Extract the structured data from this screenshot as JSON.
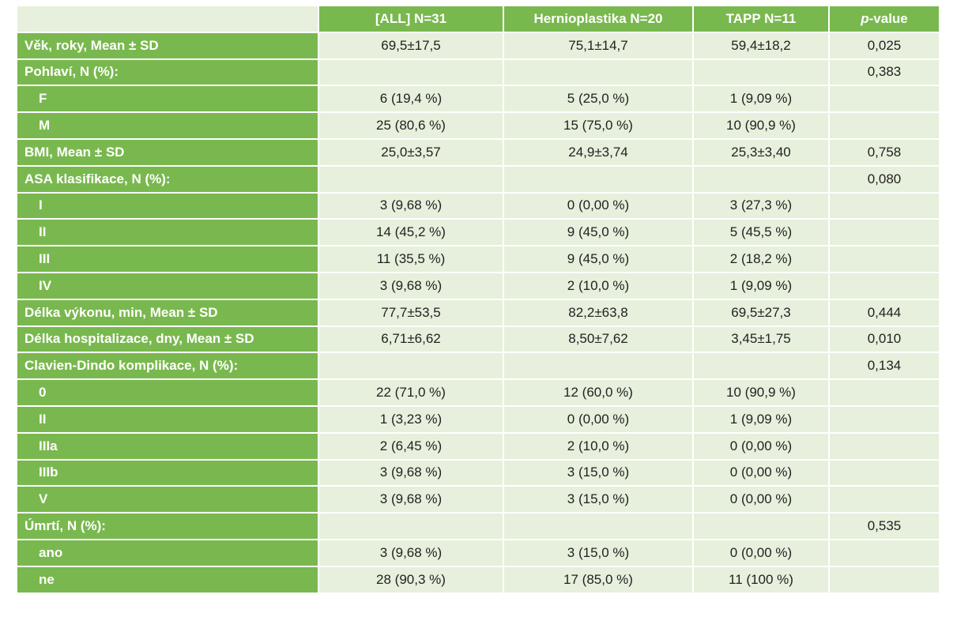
{
  "table": {
    "columns": [
      "[ALL]  N=31",
      "Hernioplastika  N=20",
      "TAPP  N=11"
    ],
    "pvalue_header": {
      "italic": "p",
      "rest": "-value"
    },
    "rows": [
      {
        "label": "Věk, roky, Mean ± SD",
        "sub": false,
        "values": [
          "69,5±17,5",
          "75,1±14,7",
          "59,4±18,2",
          "0,025"
        ]
      },
      {
        "label": "Pohlaví, N (%):",
        "sub": false,
        "values": [
          "",
          "",
          "",
          "0,383"
        ]
      },
      {
        "label": "F",
        "sub": true,
        "values": [
          "6 (19,4 %)",
          "5 (25,0 %)",
          "1 (9,09 %)",
          ""
        ]
      },
      {
        "label": "M",
        "sub": true,
        "values": [
          "25 (80,6 %)",
          "15 (75,0 %)",
          "10 (90,9 %)",
          ""
        ]
      },
      {
        "label": "BMI, Mean ± SD",
        "sub": false,
        "values": [
          "25,0±3,57",
          "24,9±3,74",
          "25,3±3,40",
          "0,758"
        ]
      },
      {
        "label": "ASA klasifikace, N (%):",
        "sub": false,
        "values": [
          "",
          "",
          "",
          "0,080"
        ]
      },
      {
        "label": "I",
        "sub": true,
        "values": [
          "3 (9,68 %)",
          "0 (0,00 %)",
          "3 (27,3 %)",
          ""
        ]
      },
      {
        "label": "II",
        "sub": true,
        "values": [
          "14 (45,2 %)",
          "9 (45,0 %)",
          "5 (45,5 %)",
          ""
        ]
      },
      {
        "label": "III",
        "sub": true,
        "values": [
          "11 (35,5 %)",
          "9 (45,0 %)",
          "2 (18,2 %)",
          ""
        ]
      },
      {
        "label": "IV",
        "sub": true,
        "values": [
          "3 (9,68 %)",
          "2 (10,0 %)",
          "1 (9,09 %)",
          ""
        ]
      },
      {
        "label": "Délka výkonu, min, Mean ± SD",
        "sub": false,
        "values": [
          "77,7±53,5",
          "82,2±63,8",
          "69,5±27,3",
          "0,444"
        ]
      },
      {
        "label": "Délka hospitalizace, dny, Mean ± SD",
        "sub": false,
        "values": [
          "6,71±6,62",
          "8,50±7,62",
          "3,45±1,75",
          "0,010"
        ]
      },
      {
        "label": "Clavien-Dindo komplikace, N (%):",
        "sub": false,
        "values": [
          "",
          "",
          "",
          "0,134"
        ]
      },
      {
        "label": "0",
        "sub": true,
        "values": [
          "22 (71,0 %)",
          "12 (60,0 %)",
          "10 (90,9 %)",
          ""
        ]
      },
      {
        "label": "II",
        "sub": true,
        "values": [
          "1 (3,23 %)",
          "0 (0,00 %)",
          "1 (9,09 %)",
          ""
        ]
      },
      {
        "label": "IIIa",
        "sub": true,
        "values": [
          "2 (6,45 %)",
          "2 (10,0 %)",
          "0 (0,00 %)",
          ""
        ]
      },
      {
        "label": "IIIb",
        "sub": true,
        "values": [
          "3 (9,68 %)",
          "3 (15,0 %)",
          "0 (0,00 %)",
          ""
        ]
      },
      {
        "label": "V",
        "sub": true,
        "values": [
          "3 (9,68 %)",
          "3 (15,0 %)",
          "0 (0,00 %)",
          ""
        ]
      },
      {
        "label": "Úmrtí, N (%):",
        "sub": false,
        "values": [
          "",
          "",
          "",
          "0,535"
        ]
      },
      {
        "label": "ano",
        "sub": true,
        "values": [
          "3 (9,68 %)",
          "3 (15,0 %)",
          "0 (0,00 %)",
          ""
        ]
      },
      {
        "label": "ne",
        "sub": true,
        "values": [
          "28 (90,3 %)",
          "17 (85,0 %)",
          "11 (100 %)",
          ""
        ]
      }
    ]
  },
  "colors": {
    "header_green": "#79b84e",
    "cell_light_green": "#e6f0dc"
  }
}
